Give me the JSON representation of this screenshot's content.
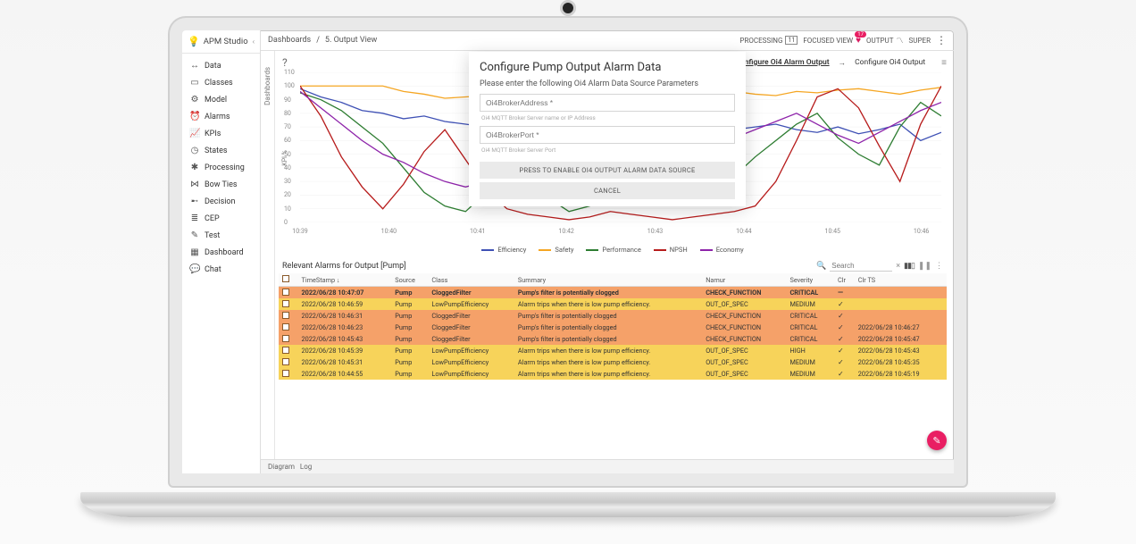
{
  "app": {
    "name": "APM Studio"
  },
  "sidebar": {
    "items": [
      {
        "icon": "↔",
        "label": "Data"
      },
      {
        "icon": "▭",
        "label": "Classes"
      },
      {
        "icon": "⚙",
        "label": "Model"
      },
      {
        "icon": "⏰",
        "label": "Alarms"
      },
      {
        "icon": "📈",
        "label": "KPIs"
      },
      {
        "icon": "◷",
        "label": "States"
      },
      {
        "icon": "✱",
        "label": "Processing"
      },
      {
        "icon": "⋈",
        "label": "Bow Ties"
      },
      {
        "icon": "➸",
        "label": "Decision"
      },
      {
        "icon": "≣",
        "label": "CEP"
      },
      {
        "icon": "✎",
        "label": "Test"
      },
      {
        "icon": "▦",
        "label": "Dashboard"
      },
      {
        "icon": "💬",
        "label": "Chat"
      }
    ]
  },
  "breadcrumb": {
    "a": "Dashboards",
    "b": "5. Output View"
  },
  "topright": {
    "processing": "PROCESSING",
    "processing_n": "11",
    "focused": "FOCUSED VIEW",
    "heart_badge": "17",
    "output": "OUTPUT",
    "super": "SUPER"
  },
  "vtab": "Dashboards",
  "panel_links": {
    "left": "Configure Oi4 Alarm Output",
    "right": "Configure Oi4 Output"
  },
  "chart": {
    "ylabel": "KPI %",
    "ylim": [
      0,
      110
    ],
    "ytick_step": 10,
    "xticks": [
      "10:39",
      "10:40",
      "10:41",
      "10:42",
      "10:43",
      "10:44",
      "10:45",
      "10:46"
    ],
    "background_color": "#ffffff",
    "grid_color": "#f0f0f0",
    "line_width": 1.3,
    "label_fontsize": 7,
    "series": [
      {
        "name": "Efficiency",
        "color": "#3f51b5",
        "values": [
          98,
          92,
          88,
          82,
          80,
          76,
          78,
          74,
          72,
          70,
          66,
          64,
          68,
          70,
          64,
          60,
          62,
          58,
          70,
          72,
          66,
          68,
          70,
          72,
          68,
          66,
          70,
          65,
          68,
          72,
          60,
          66
        ]
      },
      {
        "name": "Safety",
        "color": "#f5a623",
        "values": [
          100,
          100,
          100,
          100,
          100,
          96,
          94,
          91,
          92,
          93,
          94,
          95,
          94,
          95,
          96,
          95,
          93,
          92,
          93,
          94,
          95,
          96,
          94,
          93,
          96,
          95,
          97,
          98,
          96,
          94,
          97,
          99
        ]
      },
      {
        "name": "Performance",
        "color": "#2e7d32",
        "values": [
          95,
          90,
          82,
          70,
          58,
          40,
          22,
          12,
          8,
          22,
          40,
          30,
          18,
          8,
          12,
          24,
          36,
          48,
          32,
          20,
          14,
          34,
          48,
          60,
          72,
          80,
          62,
          50,
          42,
          70,
          88,
          78
        ]
      },
      {
        "name": "NPSH",
        "color": "#b71c1c",
        "values": [
          100,
          78,
          48,
          26,
          10,
          28,
          52,
          68,
          46,
          24,
          10,
          6,
          4,
          2,
          4,
          8,
          6,
          4,
          2,
          4,
          6,
          8,
          12,
          30,
          60,
          92,
          98,
          84,
          56,
          30,
          72,
          100
        ]
      },
      {
        "name": "Economy",
        "color": "#8e24aa",
        "values": [
          96,
          84,
          72,
          60,
          50,
          44,
          36,
          30,
          26,
          30,
          36,
          44,
          52,
          58,
          64,
          70,
          66,
          60,
          54,
          50,
          56,
          62,
          68,
          74,
          80,
          72,
          64,
          58,
          66,
          74,
          82,
          88
        ]
      }
    ]
  },
  "alarms": {
    "title": "Relevant Alarms for Output [Pump]",
    "search_placeholder": "Search",
    "columns": [
      "TimeStamp ↓",
      "Source",
      "Class",
      "Summary",
      "Namur",
      "Severity",
      "Clr",
      "Clr TS"
    ],
    "rows": [
      {
        "hl": true,
        "ts": "2022/06/28 10:47:07",
        "src": "Pump",
        "cls": "CloggedFilter",
        "sum": "Pump's filter is potentially clogged",
        "nam": "CHECK_FUNCTION",
        "sev": "CRITICAL",
        "clr": "dash",
        "clrts": ""
      },
      {
        "ts": "2022/06/28 10:46:59",
        "src": "Pump",
        "cls": "LowPumpEfficiency",
        "sum": "Alarm trips when there is low pump efficiency.",
        "nam": "OUT_OF_SPEC",
        "sev": "MEDIUM",
        "clr": "chk",
        "clrts": ""
      },
      {
        "ts": "2022/06/28 10:46:31",
        "src": "Pump",
        "cls": "CloggedFilter",
        "sum": "Pump's filter is potentially clogged",
        "nam": "CHECK_FUNCTION",
        "sev": "CRITICAL",
        "clr": "chk",
        "clrts": ""
      },
      {
        "ts": "2022/06/28 10:46:23",
        "src": "Pump",
        "cls": "CloggedFilter",
        "sum": "Pump's filter is potentially clogged",
        "nam": "CHECK_FUNCTION",
        "sev": "CRITICAL",
        "clr": "chk",
        "clrts": "2022/06/28 10:46:27"
      },
      {
        "ts": "2022/06/28 10:45:43",
        "src": "Pump",
        "cls": "CloggedFilter",
        "sum": "Pump's filter is potentially clogged",
        "nam": "CHECK_FUNCTION",
        "sev": "CRITICAL",
        "clr": "chk",
        "clrts": "2022/06/28 10:45:47"
      },
      {
        "ts": "2022/06/28 10:45:39",
        "src": "Pump",
        "cls": "LowPumpEfficiency",
        "sum": "Alarm trips when there is low pump efficiency.",
        "nam": "OUT_OF_SPEC",
        "sev": "HIGH",
        "clr": "chk",
        "clrts": "2022/06/28 10:45:43"
      },
      {
        "ts": "2022/06/28 10:45:31",
        "src": "Pump",
        "cls": "LowPumpEfficiency",
        "sum": "Alarm trips when there is low pump efficiency.",
        "nam": "OUT_OF_SPEC",
        "sev": "MEDIUM",
        "clr": "chk",
        "clrts": "2022/06/28 10:45:35"
      },
      {
        "ts": "2022/06/28 10:44:55",
        "src": "Pump",
        "cls": "LowPumpEfficiency",
        "sum": "Alarm trips when there is low pump efficiency.",
        "nam": "OUT_OF_SPEC",
        "sev": "MEDIUM",
        "clr": "chk",
        "clrts": "2022/06/28 10:45:19"
      }
    ]
  },
  "bottom": {
    "a": "Diagram",
    "b": "Log"
  },
  "modal": {
    "title": "Configure Pump Output Alarm Data",
    "subtitle": "Please enter the following Oi4 Alarm Data Source Parameters",
    "field1_placeholder": "Oi4BrokerAddress *",
    "field1_hint": "Oi4 MQTT Broker Server name or IP Address",
    "field2_placeholder": "Oi4BrokerPort *",
    "field2_hint": "Oi4 MQTT Broker Server Port",
    "enable_btn": "PRESS TO ENABLE OI4 OUTPUT ALARM DATA SOURCE",
    "cancel_btn": "CANCEL"
  }
}
